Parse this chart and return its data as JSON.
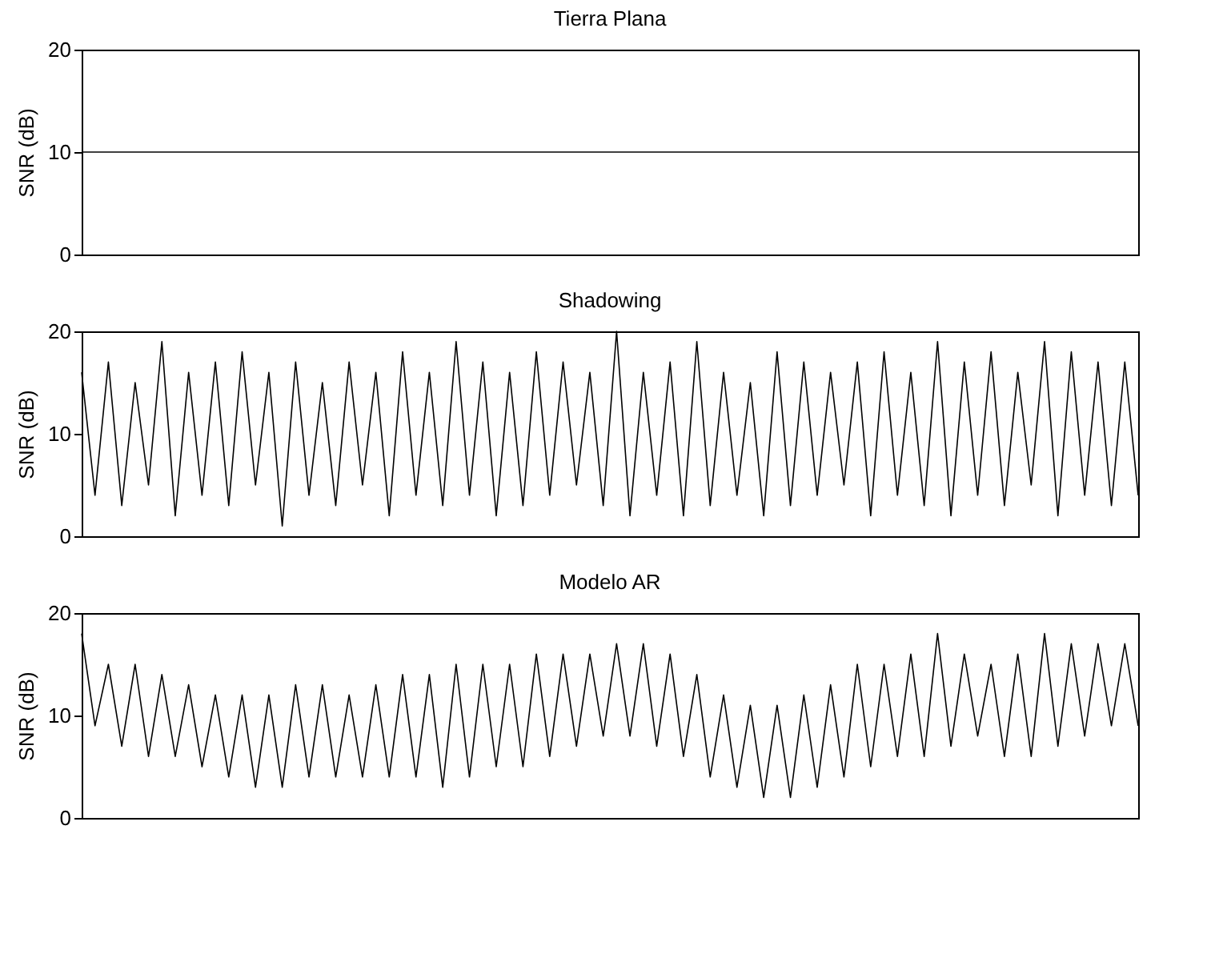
{
  "chart_data": [
    {
      "type": "line",
      "title": "Tierra Plana",
      "ylabel": "SNR (dB)",
      "categories": [
        null,
        null,
        null,
        null,
        null,
        null,
        null,
        null,
        null,
        null,
        null,
        null,
        null,
        null,
        null,
        null,
        null,
        null,
        null,
        null,
        null,
        null,
        null,
        null,
        null,
        null,
        null,
        null,
        null,
        null,
        null,
        null,
        null,
        null,
        null,
        null,
        null,
        null,
        null,
        null,
        null,
        null,
        null,
        null,
        null,
        null,
        null,
        null,
        null,
        null,
        null,
        null,
        null,
        null,
        null,
        null,
        null,
        null,
        null,
        null,
        null,
        null,
        null,
        null,
        null,
        null,
        null,
        null,
        null,
        null,
        null,
        null,
        null,
        null,
        null,
        null,
        null,
        null,
        null,
        null
      ],
      "series": [
        {
          "color": "#000000",
          "values": [
            10,
            10,
            10,
            10,
            10,
            10,
            10,
            10,
            10,
            10,
            10,
            10,
            10,
            10,
            10,
            10,
            10,
            10,
            10,
            10,
            10,
            10,
            10,
            10,
            10,
            10,
            10,
            10,
            10,
            10,
            10,
            10,
            10,
            10,
            10,
            10,
            10,
            10,
            10,
            10,
            10,
            10,
            10,
            10,
            10,
            10,
            10,
            10,
            10,
            10,
            10,
            10,
            10,
            10,
            10,
            10,
            10,
            10,
            10,
            10,
            10,
            10,
            10,
            10,
            10,
            10,
            10,
            10,
            10,
            10,
            10,
            10,
            10,
            10,
            10,
            10,
            10,
            10,
            10,
            10
          ]
        }
      ],
      "ylim": [
        0,
        20
      ],
      "yticks": [
        0,
        10,
        20
      ],
      "tick_labels": "y"
    },
    {
      "type": "line",
      "title": "Shadowing",
      "ylabel": "SNR (dB)",
      "categories": [
        null,
        null,
        null,
        null,
        null,
        null,
        null,
        null,
        null,
        null,
        null,
        null,
        null,
        null,
        null,
        null,
        null,
        null,
        null,
        null,
        null,
        null,
        null,
        null,
        null,
        null,
        null,
        null,
        null,
        null,
        null,
        null,
        null,
        null,
        null,
        null,
        null,
        null,
        null,
        null,
        null,
        null,
        null,
        null,
        null,
        null,
        null,
        null,
        null,
        null,
        null,
        null,
        null,
        null,
        null,
        null,
        null,
        null,
        null,
        null,
        null,
        null,
        null,
        null,
        null,
        null,
        null,
        null,
        null,
        null,
        null,
        null,
        null,
        null,
        null,
        null,
        null,
        null,
        null,
        null
      ],
      "series": [
        {
          "color": "#000000",
          "values": [
            16,
            4,
            17,
            3,
            15,
            5,
            19,
            2,
            16,
            4,
            17,
            3,
            18,
            5,
            16,
            1,
            17,
            4,
            15,
            3,
            17,
            5,
            16,
            2,
            18,
            4,
            16,
            3,
            19,
            4,
            17,
            2,
            16,
            3,
            18,
            4,
            17,
            5,
            16,
            3,
            20,
            2,
            16,
            4,
            17,
            2,
            19,
            3,
            16,
            4,
            15,
            2,
            18,
            3,
            17,
            4,
            16,
            5,
            17,
            2,
            18,
            4,
            16,
            3,
            19,
            2,
            17,
            4,
            18,
            3,
            16,
            5,
            19,
            2,
            18,
            4,
            17,
            3,
            17,
            4
          ]
        }
      ],
      "ylim": [
        0,
        20
      ],
      "yticks": [
        0,
        10,
        20
      ],
      "tick_labels": "y"
    },
    {
      "type": "line",
      "title": "Modelo AR",
      "ylabel": "SNR (dB)",
      "categories": [
        null,
        null,
        null,
        null,
        null,
        null,
        null,
        null,
        null,
        null,
        null,
        null,
        null,
        null,
        null,
        null,
        null,
        null,
        null,
        null,
        null,
        null,
        null,
        null,
        null,
        null,
        null,
        null,
        null,
        null,
        null,
        null,
        null,
        null,
        null,
        null,
        null,
        null,
        null,
        null,
        null,
        null,
        null,
        null,
        null,
        null,
        null,
        null,
        null,
        null,
        null,
        null,
        null,
        null,
        null,
        null,
        null,
        null,
        null,
        null,
        null,
        null,
        null,
        null,
        null,
        null,
        null,
        null,
        null,
        null,
        null,
        null,
        null,
        null,
        null,
        null,
        null,
        null,
        null,
        null
      ],
      "series": [
        {
          "color": "#000000",
          "values": [
            18,
            9,
            15,
            7,
            15,
            6,
            14,
            6,
            13,
            5,
            12,
            4,
            12,
            3,
            12,
            3,
            13,
            4,
            13,
            4,
            12,
            4,
            13,
            4,
            14,
            4,
            14,
            3,
            15,
            4,
            15,
            5,
            15,
            5,
            16,
            6,
            16,
            7,
            16,
            8,
            17,
            8,
            17,
            7,
            16,
            6,
            14,
            4,
            12,
            3,
            11,
            2,
            11,
            2,
            12,
            3,
            13,
            4,
            15,
            5,
            15,
            6,
            16,
            6,
            18,
            7,
            16,
            8,
            15,
            6,
            16,
            6,
            18,
            7,
            17,
            8,
            17,
            9,
            17,
            9
          ]
        }
      ],
      "ylim": [
        0,
        20
      ],
      "yticks": [
        0,
        10,
        20
      ],
      "tick_labels": "y"
    }
  ]
}
